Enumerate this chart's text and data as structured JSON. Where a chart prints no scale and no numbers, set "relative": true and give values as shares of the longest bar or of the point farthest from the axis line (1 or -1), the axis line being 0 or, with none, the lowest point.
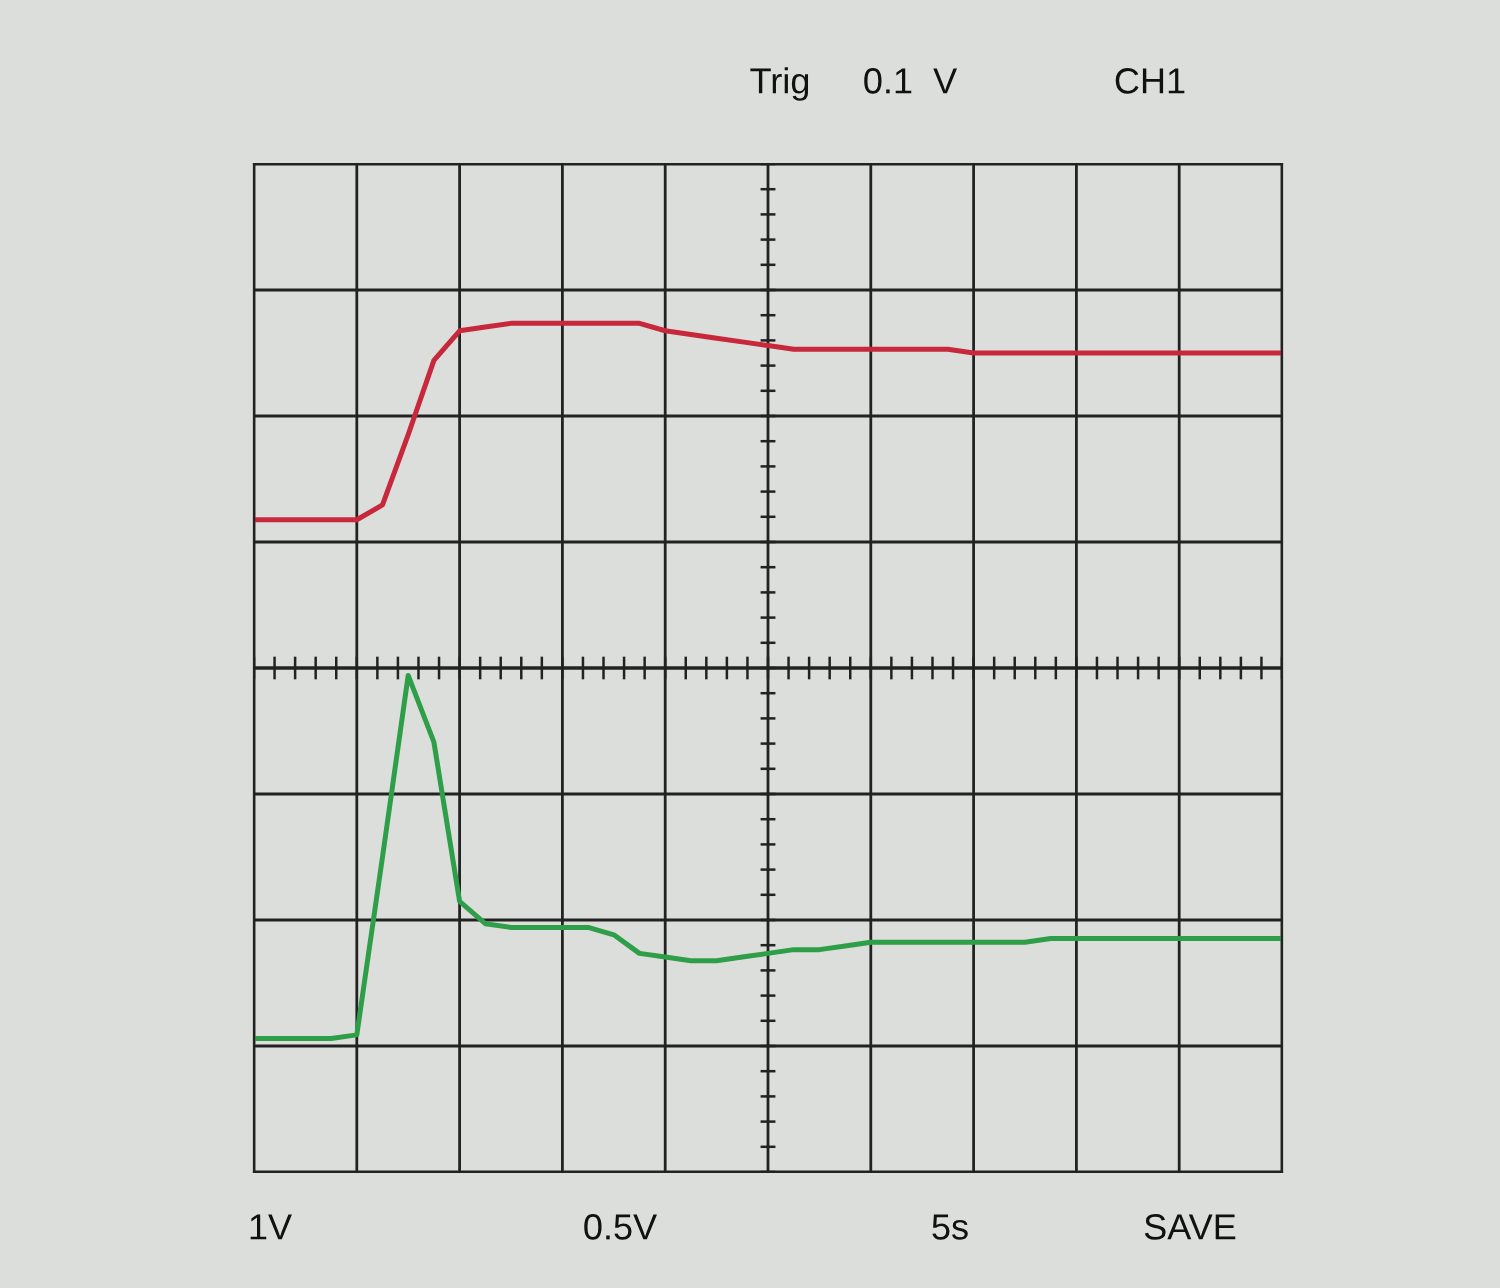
{
  "chart_data": {
    "type": "line",
    "relative": true,
    "grid": true,
    "categories": [
      null,
      null,
      null,
      null,
      null,
      null,
      null,
      null,
      null,
      null,
      null,
      null,
      null,
      null,
      null,
      null,
      null,
      null,
      null,
      null,
      null,
      null,
      null,
      null,
      null,
      null,
      null,
      null,
      null,
      null,
      null,
      null,
      null,
      null,
      null,
      null,
      null,
      null,
      null,
      null,
      null
    ],
    "series": [
      {
        "color": "#c8283c",
        "values": [
          0.4,
          0.4,
          0.4,
          0.4,
          0.4,
          0.44,
          0.63,
          0.83,
          0.91,
          0.92,
          0.93,
          0.93,
          0.93,
          0.93,
          0.93,
          0.93,
          0.91,
          0.9,
          0.89,
          0.88,
          0.87,
          0.86,
          0.86,
          0.86,
          0.86,
          0.86,
          0.86,
          0.86,
          0.85,
          0.85,
          0.85,
          0.85,
          0.85,
          0.85,
          0.85,
          0.85,
          0.85,
          0.85,
          0.85,
          0.85,
          0.85
        ]
      },
      {
        "color": "#2e9e48",
        "values": [
          -1,
          -1,
          -1,
          -1,
          -0.99,
          -0.51,
          -0.02,
          -0.2,
          -0.63,
          -0.69,
          -0.7,
          -0.7,
          -0.7,
          -0.7,
          -0.72,
          -0.77,
          -0.78,
          -0.79,
          -0.79,
          -0.78,
          -0.77,
          -0.76,
          -0.76,
          -0.75,
          -0.74,
          -0.74,
          -0.74,
          -0.74,
          -0.74,
          -0.74,
          -0.74,
          -0.73,
          -0.73,
          -0.73,
          -0.73,
          -0.73,
          -0.73,
          -0.73,
          -0.73,
          -0.73,
          -0.73
        ]
      }
    ],
    "annotations": [
      "Trig",
      "0.1  V",
      "CH1",
      "1V",
      "0.5V",
      "5s",
      "SAVE"
    ]
  }
}
